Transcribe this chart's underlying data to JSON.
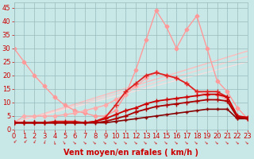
{
  "xlabel": "Vent moyen/en rafales ( km/h )",
  "xlim": [
    0,
    23
  ],
  "ylim": [
    0,
    47
  ],
  "yticks": [
    0,
    5,
    10,
    15,
    20,
    25,
    30,
    35,
    40,
    45
  ],
  "xticks": [
    0,
    1,
    2,
    3,
    4,
    5,
    6,
    7,
    8,
    9,
    10,
    11,
    12,
    13,
    14,
    15,
    16,
    17,
    18,
    19,
    20,
    21,
    22,
    23
  ],
  "background_color": "#c8e8e8",
  "grid_color": "#99bbbb",
  "lines": [
    {
      "x": [
        0,
        1,
        2,
        3,
        4,
        5,
        6,
        7,
        8,
        9,
        10,
        11,
        12,
        13,
        14,
        15,
        16,
        17,
        18,
        19,
        20,
        21,
        22,
        23
      ],
      "y": [
        30,
        25,
        20,
        16,
        12,
        9,
        7,
        6,
        5,
        5,
        7,
        13,
        22,
        33,
        44,
        38,
        30,
        37,
        42,
        30,
        18,
        14,
        8,
        4
      ],
      "color": "#ff9999",
      "linewidth": 1.0,
      "marker": "D",
      "markersize": 2.5,
      "zorder": 2
    },
    {
      "x": [
        0,
        1,
        2,
        3,
        4,
        5,
        6,
        7,
        8,
        9,
        10,
        11,
        12,
        13,
        14,
        15,
        16,
        17,
        18,
        19,
        20,
        21,
        22,
        23
      ],
      "y": [
        2.5,
        5,
        5,
        5,
        5,
        5.5,
        6,
        7,
        8,
        9,
        11,
        13,
        16,
        19,
        21,
        20,
        19,
        17,
        14,
        13,
        13,
        11,
        5,
        4
      ],
      "color": "#ffaaaa",
      "linewidth": 1.0,
      "marker": "D",
      "markersize": 2.5,
      "zorder": 2
    },
    {
      "x": [
        0,
        1,
        2,
        3,
        4,
        5,
        6,
        7,
        8,
        9,
        10,
        11,
        12,
        13,
        14,
        15,
        16,
        17,
        18,
        19,
        20,
        21,
        22,
        23
      ],
      "y": [
        2.5,
        2.5,
        2.5,
        2.5,
        3,
        3,
        3,
        2.5,
        3,
        4.5,
        9,
        14,
        17,
        20,
        21,
        20,
        19,
        17,
        14,
        14,
        14,
        12,
        5,
        4
      ],
      "color": "#dd2222",
      "linewidth": 1.3,
      "marker": "+",
      "markersize": 4,
      "zorder": 4
    },
    {
      "x": [
        0,
        1,
        2,
        3,
        4,
        5,
        6,
        7,
        8,
        9,
        10,
        11,
        12,
        13,
        14,
        15,
        16,
        17,
        18,
        19,
        20,
        21,
        22,
        23
      ],
      "y": [
        2.5,
        2.5,
        2.5,
        2.5,
        2.5,
        2.5,
        2.5,
        2.5,
        3,
        4,
        5.5,
        7,
        8,
        9.5,
        10.5,
        11,
        11.5,
        12,
        12.5,
        13,
        13,
        12,
        5,
        4.5
      ],
      "color": "#cc0000",
      "linewidth": 1.3,
      "marker": "+",
      "markersize": 4,
      "zorder": 4
    },
    {
      "x": [
        0,
        1,
        2,
        3,
        4,
        5,
        6,
        7,
        8,
        9,
        10,
        11,
        12,
        13,
        14,
        15,
        16,
        17,
        18,
        19,
        20,
        21,
        22,
        23
      ],
      "y": [
        2.5,
        2.5,
        2.5,
        2.5,
        2.5,
        2.5,
        2.5,
        2.5,
        2.5,
        3,
        4,
        5,
        6.5,
        7.5,
        8.5,
        9,
        9.5,
        10,
        10.5,
        11,
        11,
        10.5,
        4.5,
        4
      ],
      "color": "#aa0000",
      "linewidth": 1.3,
      "marker": "+",
      "markersize": 4,
      "zorder": 4
    },
    {
      "x": [
        0,
        1,
        2,
        3,
        4,
        5,
        6,
        7,
        8,
        9,
        10,
        11,
        12,
        13,
        14,
        15,
        16,
        17,
        18,
        19,
        20,
        21,
        22,
        23
      ],
      "y": [
        2.5,
        2.5,
        2.5,
        2.5,
        2.5,
        2.5,
        2.5,
        2.5,
        2.5,
        2.5,
        3,
        3.5,
        4,
        4.5,
        5,
        5.5,
        6,
        6.5,
        7,
        7.5,
        7.5,
        7.5,
        4,
        4
      ],
      "color": "#880000",
      "linewidth": 1.2,
      "marker": "+",
      "markersize": 3,
      "zorder": 3
    },
    {
      "x": [
        0,
        23
      ],
      "y": [
        2.5,
        29
      ],
      "color": "#ffbbbb",
      "linewidth": 1.0,
      "marker": null,
      "markersize": 0,
      "zorder": 1
    },
    {
      "x": [
        0,
        23
      ],
      "y": [
        2.5,
        27
      ],
      "color": "#ffcccc",
      "linewidth": 0.9,
      "marker": null,
      "markersize": 0,
      "zorder": 1
    },
    {
      "x": [
        0,
        23
      ],
      "y": [
        2.5,
        25
      ],
      "color": "#ffdddd",
      "linewidth": 0.8,
      "marker": null,
      "markersize": 0,
      "zorder": 1
    }
  ],
  "xlabel_color": "#cc0000",
  "xlabel_fontsize": 7,
  "tick_fontsize": 6,
  "tick_color": "#cc0000",
  "arrow_angles": [
    -45,
    -45,
    -30,
    -20,
    10,
    30,
    45,
    45,
    45,
    45,
    45,
    45,
    45,
    45,
    45,
    45,
    45,
    45,
    45,
    45,
    45,
    45,
    45,
    45
  ]
}
